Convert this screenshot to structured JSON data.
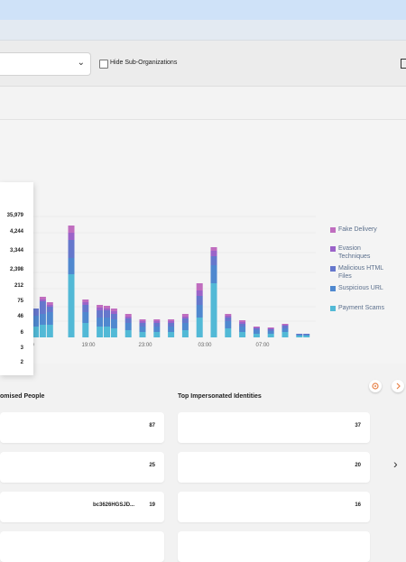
{
  "filters": {
    "hide_sub_orgs_label": "Hide Sub-Organizations"
  },
  "tooltip": {
    "values": [
      "35,979",
      "4,244",
      "3,344",
      "2,398",
      "212",
      "75",
      "46",
      "6",
      "3",
      "2"
    ]
  },
  "chart_data": {
    "type": "bar",
    "stacked": true,
    "x_tick_labels": [
      "0",
      "19:00",
      "23:00",
      "03:00",
      "07:00"
    ],
    "series": [
      {
        "name": "Fake Delivery",
        "color": "#c06dbf"
      },
      {
        "name": "Evasion Techniques",
        "color": "#9b63c9"
      },
      {
        "name": "Malicious HTML Files",
        "color": "#6577cc"
      },
      {
        "name": "Suspicious URL",
        "color": "#4f88cf"
      },
      {
        "name": "Payment Scams",
        "color": "#52b9d6"
      }
    ],
    "bars": [
      [
        0,
        0,
        8,
        12,
        12
      ],
      [
        3,
        2,
        14,
        12,
        14
      ],
      [
        3,
        2,
        6,
        14,
        14
      ],
      [
        0,
        0,
        0,
        0,
        0
      ],
      [
        0,
        0,
        0,
        0,
        0
      ],
      [
        8,
        8,
        20,
        18,
        70
      ],
      [
        0,
        0,
        0,
        0,
        0
      ],
      [
        3,
        3,
        8,
        12,
        16
      ],
      [
        0,
        0,
        0,
        0,
        0
      ],
      [
        3,
        3,
        8,
        10,
        12
      ],
      [
        3,
        2,
        8,
        10,
        12
      ],
      [
        3,
        3,
        6,
        10,
        10
      ],
      [
        0,
        0,
        0,
        0,
        0
      ],
      [
        3,
        2,
        5,
        8,
        8
      ],
      [
        0,
        0,
        0,
        0,
        0
      ],
      [
        2,
        2,
        4,
        6,
        6
      ],
      [
        0,
        0,
        0,
        0,
        0
      ],
      [
        2,
        2,
        4,
        6,
        6
      ],
      [
        0,
        0,
        0,
        0,
        0
      ],
      [
        2,
        2,
        4,
        6,
        6
      ],
      [
        0,
        0,
        0,
        0,
        0
      ],
      [
        3,
        2,
        5,
        8,
        8
      ],
      [
        0,
        0,
        0,
        0,
        0
      ],
      [
        8,
        6,
        10,
        14,
        22
      ],
      [
        0,
        0,
        0,
        0,
        0
      ],
      [
        4,
        6,
        10,
        20,
        60
      ],
      [
        0,
        0,
        0,
        0,
        0
      ],
      [
        2,
        2,
        4,
        8,
        10
      ],
      [
        0,
        0,
        0,
        0,
        0
      ],
      [
        2,
        2,
        3,
        6,
        6
      ],
      [
        0,
        0,
        0,
        0,
        0
      ],
      [
        1,
        1,
        2,
        4,
        4
      ],
      [
        0,
        0,
        0,
        0,
        0
      ],
      [
        1,
        1,
        2,
        3,
        4
      ],
      [
        0,
        0,
        0,
        0,
        0
      ],
      [
        1,
        1,
        3,
        4,
        6
      ],
      [
        0,
        0,
        0,
        0,
        0
      ],
      [
        0,
        0,
        1,
        1,
        2
      ],
      [
        0,
        0,
        1,
        1,
        2
      ]
    ]
  },
  "sections": {
    "compromised_title": "omised People",
    "impersonated_title": "Top Impersonated Identities"
  },
  "compromised_rows": [
    {
      "name": "",
      "count": "87"
    },
    {
      "name": "",
      "count": "25"
    },
    {
      "name": "bc3626HGSJD...",
      "count": "19"
    }
  ],
  "impersonated_rows": [
    {
      "count": "37"
    },
    {
      "count": "20"
    },
    {
      "count": "16"
    }
  ]
}
